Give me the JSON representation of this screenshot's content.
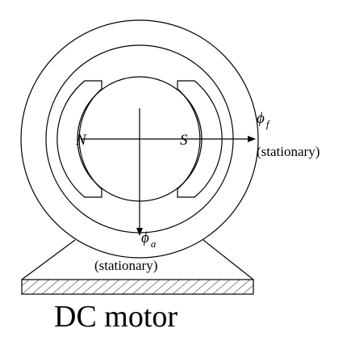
{
  "poles": {
    "north": "N",
    "south": "S"
  },
  "field_flux": {
    "symbol": "ϕ",
    "subscript": "f",
    "note": "(stationary)"
  },
  "armature_flux": {
    "symbol": "ϕ",
    "subscript": "a",
    "note": "(stationary)"
  },
  "caption": "DC motor",
  "colors": {
    "ink": "#000000",
    "background": "#ffffff"
  }
}
